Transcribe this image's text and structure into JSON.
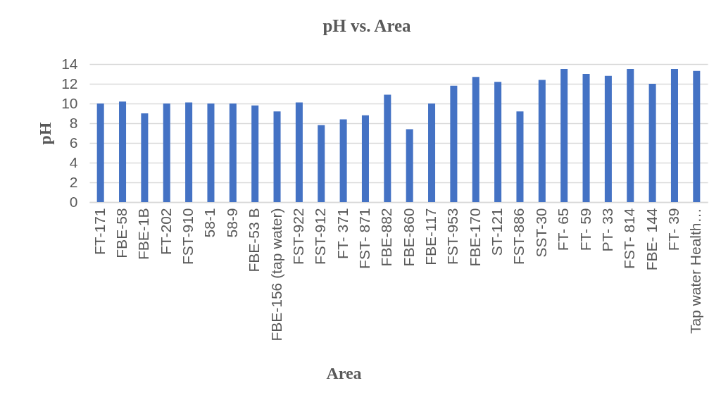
{
  "chart_data": {
    "type": "bar",
    "title": "pH vs. Area",
    "xlabel": "Area",
    "ylabel": "pH",
    "categories": [
      "FT-171",
      "FBE-58",
      "FBE-1B",
      "FT-202",
      "FST-910",
      "58-1",
      "58-9",
      "FBE-53 B",
      "FBE-156 (tap water)",
      "FST-922",
      "FST-912",
      "FT- 371",
      "FST- 871",
      "FBE-882",
      "FBE-860",
      "FBE-117",
      "FST-953",
      "FBE-170",
      "ST-121",
      "FST-886",
      "SST-30",
      "FT- 65",
      "FT- 59",
      "PT- 33",
      "FST- 814",
      "FBE- 144",
      "FT- 39",
      "Tap water Health…"
    ],
    "values": [
      10.0,
      10.2,
      9.0,
      10.0,
      10.1,
      10.0,
      10.0,
      9.8,
      9.2,
      10.1,
      7.8,
      8.4,
      8.8,
      10.9,
      7.4,
      10.0,
      11.8,
      12.7,
      12.2,
      9.2,
      12.4,
      13.5,
      13.0,
      12.8,
      13.5,
      12.0,
      13.5,
      13.3
    ],
    "color": "#4472c4",
    "ylim": [
      0,
      14
    ],
    "yticks": [
      0,
      2,
      4,
      6,
      8,
      10,
      12,
      14
    ],
    "grid": "y"
  }
}
